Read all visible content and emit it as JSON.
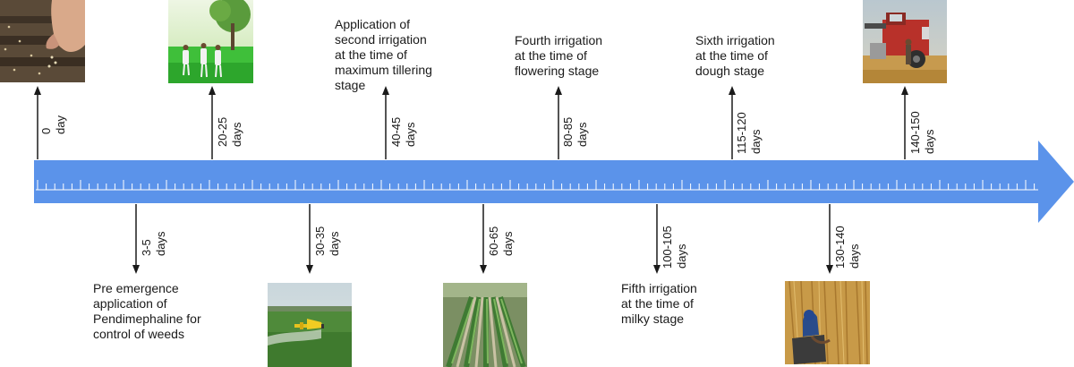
{
  "milestones": [
    {
      "day": "0",
      "unit": "day",
      "side": "above",
      "picture": "sowing-seeds-photo"
    },
    {
      "day": "3-5",
      "unit": "days",
      "side": "below",
      "text": "Pre emergence\napplication of\nPendimephaline for\ncontrol of weeds"
    },
    {
      "day": "20-25",
      "unit": "days",
      "side": "above",
      "picture": "farmers-in-field-photo"
    },
    {
      "day": "30-35",
      "unit": "days",
      "side": "below",
      "picture": "crop-dusting-plane-photo"
    },
    {
      "day": "40-45",
      "unit": "days",
      "side": "above",
      "text": "Application of\nsecond irrigation\nat the time of\nmaximum tillering\nstage"
    },
    {
      "day": "60-65",
      "unit": "days",
      "side": "below",
      "picture": "young-crop-rows-photo"
    },
    {
      "day": "80-85",
      "unit": "days",
      "side": "above",
      "text": "Fourth irrigation\nat the time of\nflowering stage"
    },
    {
      "day": "100-105",
      "unit": "days",
      "side": "below",
      "text": "Fifth irrigation\nat the time of\nmilky stage"
    },
    {
      "day": "115-120",
      "unit": "days",
      "side": "above",
      "text": "Sixth irrigation\nat the time of\ndough stage"
    },
    {
      "day": "130-140",
      "unit": "days",
      "side": "below",
      "picture": "harvesting-by-hand-photo"
    },
    {
      "day": "140-150",
      "unit": "days",
      "side": "above",
      "picture": "combine-harvester-photo"
    }
  ],
  "colors": {
    "timeline": "#5b93ea",
    "ticks": "#ffffff",
    "arrows": "#1a1a1a"
  }
}
